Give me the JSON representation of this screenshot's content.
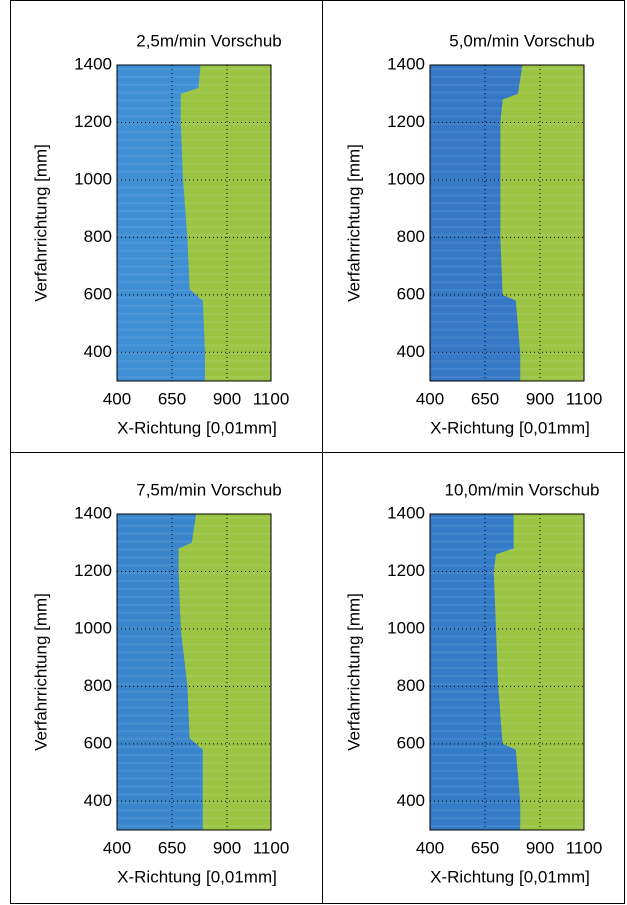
{
  "chart_data": [
    {
      "type": "heatmap",
      "title": "2,5m/min Vorschub",
      "xlabel": "X-Richtung [0,01mm]",
      "ylabel": "Verfahrrichtung [mm]",
      "xlim": [
        400,
        1100
      ],
      "xticks": [
        400,
        650,
        900,
        1100
      ],
      "ylim": [
        300,
        1400
      ],
      "yticks": [
        400,
        600,
        800,
        1000,
        1200,
        1400
      ],
      "grid": true,
      "colors": [
        "#3f8fd4",
        "#9cc443"
      ],
      "boundary": {
        "y": [
          1400,
          1320,
          1300,
          1200,
          1000,
          800,
          620,
          580,
          400,
          300
        ],
        "x": [
          780,
          770,
          690,
          690,
          700,
          720,
          730,
          790,
          800,
          800
        ]
      }
    },
    {
      "type": "heatmap",
      "title": "5,0m/min Vorschub",
      "xlabel": "X-Richtung [0,01mm]",
      "ylabel": "Verfahrrichtung [mm]",
      "xlim": [
        400,
        1100
      ],
      "xticks": [
        400,
        650,
        900,
        1100
      ],
      "ylim": [
        300,
        1400
      ],
      "yticks": [
        400,
        600,
        800,
        1000,
        1200,
        1400
      ],
      "grid": true,
      "colors": [
        "#3478c6",
        "#9cc443"
      ],
      "boundary": {
        "y": [
          1400,
          1300,
          1280,
          1200,
          1000,
          800,
          600,
          580,
          400,
          300
        ],
        "x": [
          820,
          800,
          730,
          720,
          720,
          720,
          730,
          790,
          810,
          810
        ]
      }
    },
    {
      "type": "heatmap",
      "title": "7,5m/min Vorschub",
      "xlabel": "X-Richtung [0,01mm]",
      "ylabel": "Verfahrrichtung [mm]",
      "xlim": [
        400,
        1100
      ],
      "xticks": [
        400,
        650,
        900,
        1100
      ],
      "ylim": [
        300,
        1400
      ],
      "yticks": [
        400,
        600,
        800,
        1000,
        1200,
        1400
      ],
      "grid": true,
      "colors": [
        "#3a86cc",
        "#9cc443"
      ],
      "boundary": {
        "y": [
          1400,
          1300,
          1280,
          1200,
          1000,
          800,
          620,
          580,
          400,
          300
        ],
        "x": [
          760,
          740,
          680,
          680,
          690,
          720,
          730,
          790,
          790,
          790
        ]
      }
    },
    {
      "type": "heatmap",
      "title": "10,0m/min Vorschub",
      "xlabel": "X-Richtung [0,01mm]",
      "ylabel": "Verfahrrichtung [mm]",
      "xlim": [
        400,
        1100
      ],
      "xticks": [
        400,
        650,
        900,
        1100
      ],
      "ylim": [
        300,
        1400
      ],
      "yticks": [
        400,
        600,
        800,
        1000,
        1200,
        1400
      ],
      "grid": true,
      "colors": [
        "#357cc8",
        "#9cc443"
      ],
      "boundary": {
        "y": [
          1400,
          1280,
          1260,
          1200,
          1000,
          800,
          600,
          580,
          400,
          300
        ],
        "x": [
          780,
          780,
          700,
          690,
          700,
          710,
          730,
          790,
          810,
          810
        ]
      }
    }
  ]
}
